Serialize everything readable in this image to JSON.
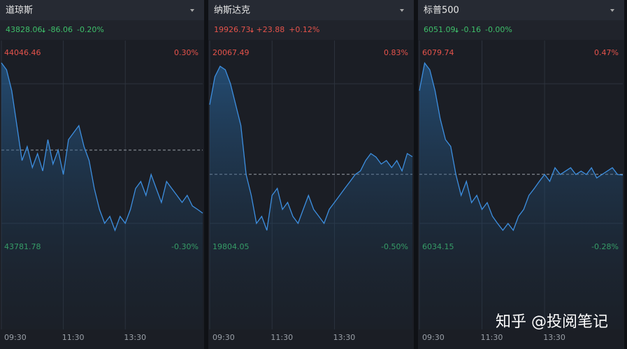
{
  "chart_data": [
    {
      "type": "line",
      "title": "道琼斯",
      "price": "43828.06",
      "change": "-86.06",
      "pct": "-0.20%",
      "quote_color": "#3ebf6a",
      "color": "#3d8fe0",
      "ylim": [
        43781.78,
        44046.46
      ],
      "yticks": [
        43781.78,
        44046.46
      ],
      "y2lim": [
        -0.3,
        0.3
      ],
      "y2ticks": [
        {
          "value": -0.3,
          "label": "-0.30%"
        },
        {
          "value": 0.3,
          "label": "0.30%"
        }
      ],
      "baseline": 43914.12,
      "xlim": [
        0,
        390
      ],
      "xticks": [
        {
          "value": 0,
          "label": "09:30"
        },
        {
          "value": 120,
          "label": "11:30"
        },
        {
          "value": 240,
          "label": "13:30"
        }
      ],
      "values": [
        44033.1,
        44023.6,
        43995.0,
        43947.4,
        43899.8,
        43918.9,
        43890.3,
        43909.4,
        43885.6,
        43928.4,
        43895.1,
        43914.1,
        43880.8,
        43928.4,
        43937.9,
        43947.4,
        43918.9,
        43899.8,
        43861.8,
        43833.2,
        43814.2,
        43823.7,
        43804.6,
        43823.7,
        43814.2,
        43833.2,
        43861.8,
        43871.3,
        43852.3,
        43880.8,
        43861.8,
        43842.7,
        43871.3,
        43861.8,
        43852.3,
        43842.7,
        43852.3,
        43838.0,
        43833.2,
        43828.06
      ]
    },
    {
      "type": "line",
      "title": "纳斯达克",
      "price": "19926.73",
      "change": "+23.88",
      "pct": "+0.12%",
      "quote_color": "#e5534b",
      "color": "#3d8fe0",
      "ylim": [
        19804.05,
        20067.49
      ],
      "yticks": [
        19804.05,
        20067.49
      ],
      "y2lim": [
        -0.5,
        0.83
      ],
      "y2ticks": [
        {
          "value": -0.5,
          "label": "-0.50%"
        },
        {
          "value": 0.83,
          "label": "0.83%"
        }
      ],
      "baseline": 19902.85,
      "xlim": [
        0,
        390
      ],
      "xticks": [
        {
          "value": 0,
          "label": "09:30"
        },
        {
          "value": 120,
          "label": "11:30"
        },
        {
          "value": 240,
          "label": "13:30"
        }
      ],
      "values": [
        19997.4,
        20035.3,
        20049.5,
        20044.8,
        20025.8,
        19997.4,
        19969.0,
        19902.6,
        19874.2,
        19836.3,
        19845.7,
        19826.8,
        19874.2,
        19883.7,
        19855.2,
        19864.7,
        19845.7,
        19836.3,
        19855.2,
        19874.2,
        19855.2,
        19845.7,
        19836.3,
        19855.2,
        19864.7,
        19874.2,
        19883.7,
        19893.1,
        19902.6,
        19907.4,
        19921.6,
        19931.0,
        19926.3,
        19916.8,
        19921.6,
        19912.1,
        19921.6,
        19907.4,
        19931.0,
        19926.73
      ]
    },
    {
      "type": "line",
      "title": "标普500",
      "price": "6051.09",
      "change": "-0.16",
      "pct": "-0.00%",
      "quote_color": "#3ebf6a",
      "color": "#3d8fe0",
      "ylim": [
        6034.15,
        6079.74
      ],
      "yticks": [
        6034.15,
        6079.74
      ],
      "y2lim": [
        -0.28,
        0.47
      ],
      "y2ticks": [
        {
          "value": -0.28,
          "label": "-0.28%"
        },
        {
          "value": 0.47,
          "label": "0.47%"
        }
      ],
      "baseline": 6051.25,
      "xlim": [
        0,
        390
      ],
      "xticks": [
        {
          "value": 0,
          "label": "09:30"
        },
        {
          "value": 120,
          "label": "11:30"
        },
        {
          "value": 240,
          "label": "13:30"
        }
      ],
      "values": [
        6070.9,
        6077.4,
        6075.8,
        6070.9,
        6064.3,
        6059.4,
        6057.8,
        6051.2,
        6046.3,
        6049.6,
        6044.6,
        6046.3,
        6043.0,
        6044.6,
        6041.4,
        6039.7,
        6038.1,
        6039.7,
        6038.1,
        6041.4,
        6043.0,
        6046.3,
        6047.9,
        6049.6,
        6051.2,
        6049.6,
        6052.8,
        6051.2,
        6052.0,
        6052.8,
        6051.2,
        6052.0,
        6051.2,
        6052.8,
        6050.4,
        6051.2,
        6052.0,
        6052.8,
        6051.2,
        6051.09
      ]
    }
  ],
  "watermark": "知乎 @投阅笔记"
}
